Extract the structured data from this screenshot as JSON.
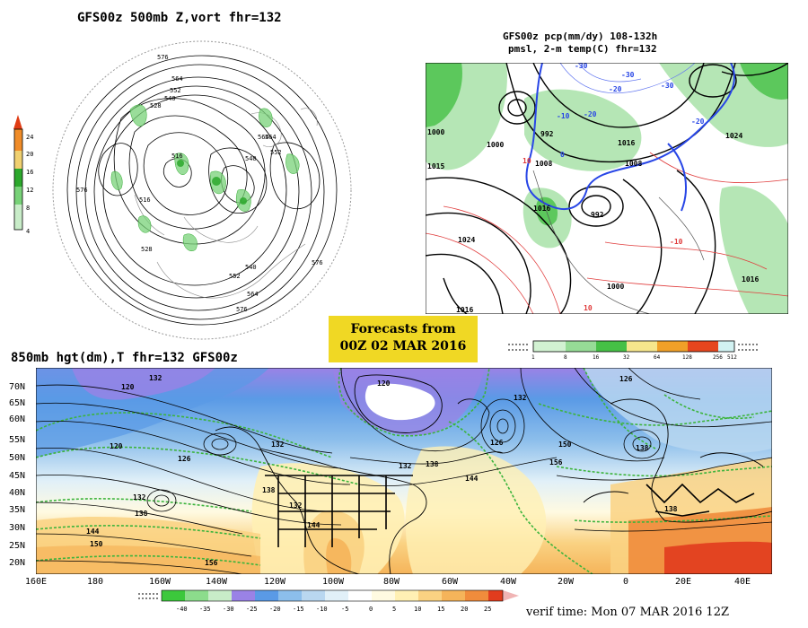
{
  "panel_500mb": {
    "title": "GFS00z   500mb  Z,vort    fhr=132",
    "colorbar_ticks": [
      "24",
      "20",
      "16",
      "12",
      "8",
      "4"
    ],
    "contour_labels": [
      "576",
      "564",
      "552",
      "540",
      "528",
      "516",
      "564",
      "540",
      "552",
      "516",
      "528",
      "540",
      "552",
      "564",
      "576",
      "576",
      "564",
      "576"
    ]
  },
  "panel_precip": {
    "title_line1": "GFS00z pcp(mm/dy) 108-132h",
    "title_line2": "pmsl, 2-m temp(C)  fhr=132",
    "pressure_labels": [
      "1000",
      "1015",
      "1000",
      "1008",
      "1016",
      "1024",
      "992",
      "1000",
      "1024",
      "1016",
      "1008",
      "992",
      "1016",
      "1016"
    ],
    "temp_labels": [
      "-30",
      "-20",
      "-10",
      "-30",
      "-20",
      "0",
      "10",
      "-10",
      "10",
      "-20",
      "-30"
    ],
    "colorbar_ticks": [
      "1",
      "8",
      "16",
      "32",
      "64",
      "128",
      "256",
      "512"
    ]
  },
  "forecast_box": {
    "line1": "Forecasts from",
    "line2": "00Z 02 MAR 2016"
  },
  "panel_850mb": {
    "title": "850mb hgt(dm),T   fhr=132 GFS00z",
    "lat_labels": [
      "70N",
      "65N",
      "60N",
      "55N",
      "50N",
      "45N",
      "40N",
      "35N",
      "30N",
      "25N",
      "20N"
    ],
    "lon_labels": [
      "160E",
      "180",
      "160W",
      "140W",
      "120W",
      "100W",
      "80W",
      "60W",
      "40W",
      "20W",
      "0",
      "20E",
      "40E"
    ],
    "height_labels": [
      "132",
      "120",
      "120",
      "132",
      "126",
      "126",
      "120",
      "132",
      "132",
      "138",
      "126",
      "138",
      "150",
      "156",
      "132",
      "138",
      "144",
      "144",
      "150",
      "156",
      "138",
      "144",
      "132",
      "138"
    ],
    "colorbar_ticks": [
      "-40",
      "-35",
      "-30",
      "-25",
      "-20",
      "-15",
      "-10",
      "-5",
      "0",
      "5",
      "10",
      "15",
      "20",
      "25"
    ],
    "verif_time": "verif time: Mon 07 MAR 2016 12Z"
  },
  "colors": {
    "vort_scale": [
      "#ffffff",
      "#c8ecc8",
      "#78d278",
      "#2ca82c",
      "#f0d070",
      "#f08c28",
      "#e03c14",
      "#c81400"
    ],
    "precip_scale": [
      "#ffffff",
      "#d2f2d2",
      "#96dc96",
      "#46c046",
      "#f6e68c",
      "#f0a028",
      "#e6461e",
      "#d2f2f2"
    ],
    "temp_scale": [
      "#3cc83c",
      "#8cdc8c",
      "#c8ecc8",
      "#9a82e6",
      "#5a9ae6",
      "#8cbeeb",
      "#b9d7f0",
      "#e1f0f8",
      "#fffae1",
      "#fff0b4",
      "#fad282",
      "#f5b45a",
      "#f08c3c",
      "#e13c1e"
    ],
    "forecast_box_bg": "#f0d824"
  }
}
